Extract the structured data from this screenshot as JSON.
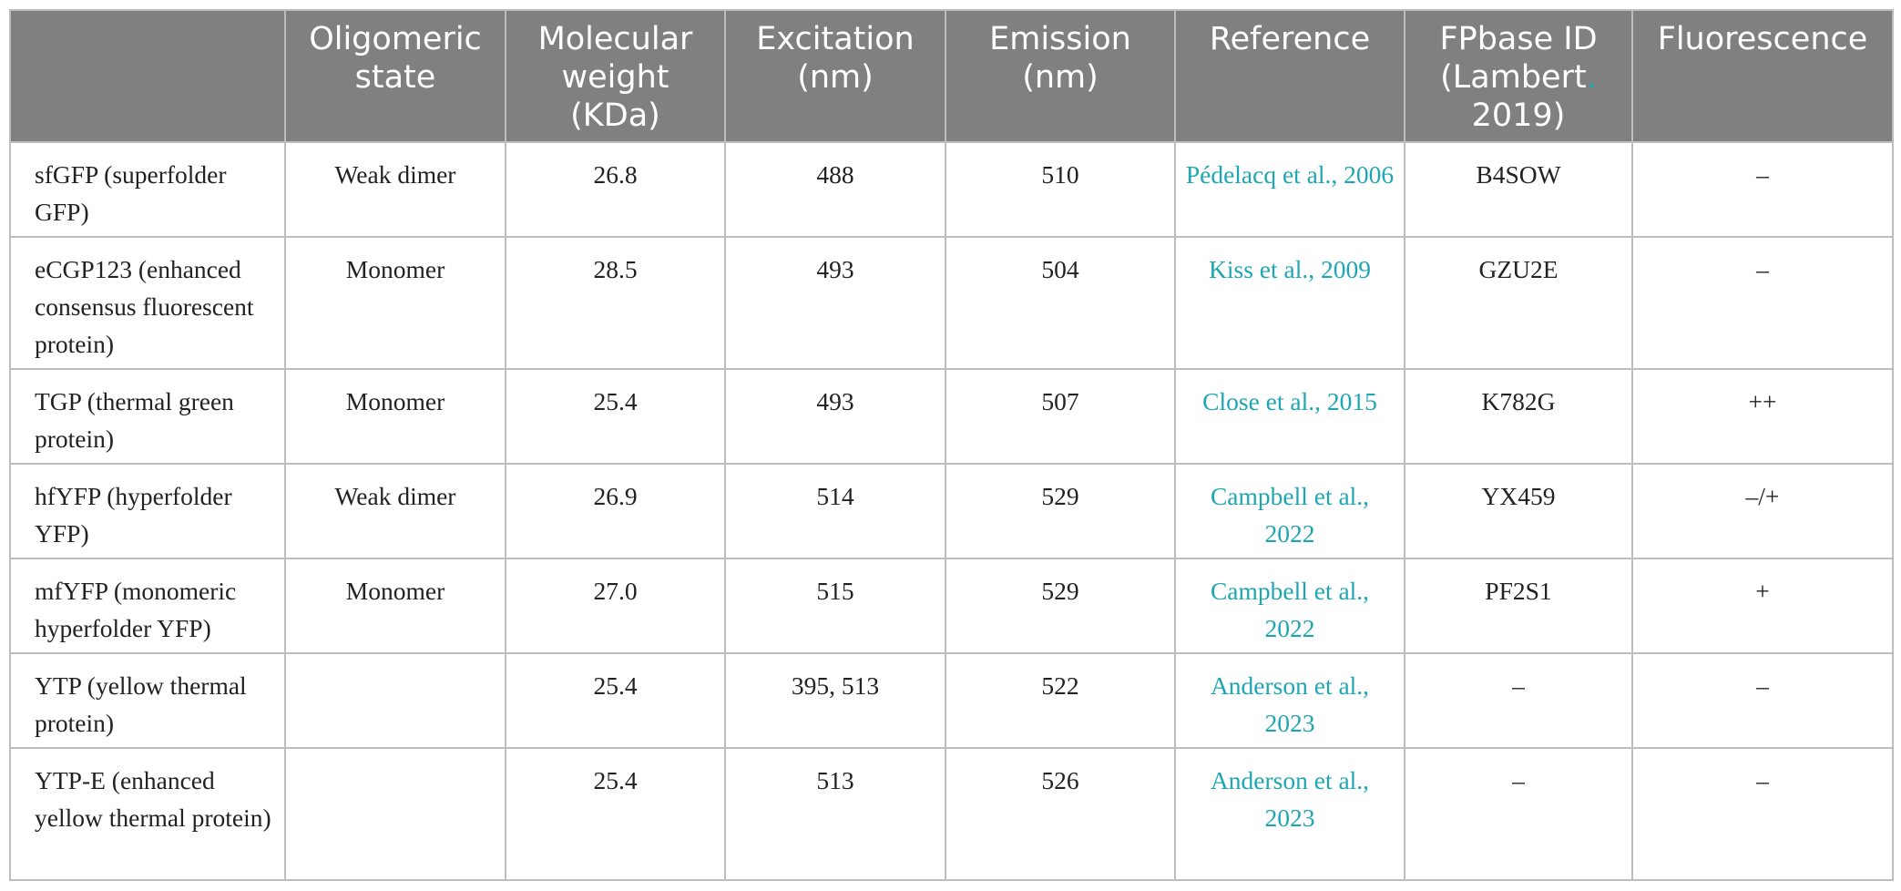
{
  "colors": {
    "header_bg": "#808080",
    "header_text": "#ffffff",
    "link": "#1fa6b3",
    "border": "#bdbdbd"
  },
  "table": {
    "headers": [
      "",
      "Oligomeric state",
      "Molecular weight (KDa)",
      "Excitation (nm)",
      "Emission (nm)",
      "Reference",
      "FPbase ID (Lambert",
      "Fluorescence"
    ],
    "header_fpbase_suffix_dot": ".",
    "header_fpbase_year": "2019)",
    "rows": [
      {
        "name": "sfGFP (superfolder GFP)",
        "oligomeric": "Weak dimer",
        "mw": "26.8",
        "excitation": "488",
        "emission": "510",
        "reference": "Pédelacq et al., 2006",
        "fpbase": "B4SOW",
        "fluorescence": "–"
      },
      {
        "name": "eCGP123 (enhanced consensus fluorescent protein)",
        "oligomeric": "Monomer",
        "mw": "28.5",
        "excitation": "493",
        "emission": "504",
        "reference": "Kiss et al., 2009",
        "fpbase": "GZU2E",
        "fluorescence": "–"
      },
      {
        "name": "TGP (thermal green protein)",
        "oligomeric": "Monomer",
        "mw": "25.4",
        "excitation": "493",
        "emission": "507",
        "reference": "Close et al., 2015",
        "fpbase": "K782G",
        "fluorescence": "++"
      },
      {
        "name": "hfYFP (hyperfolder YFP)",
        "oligomeric": "Weak dimer",
        "mw": "26.9",
        "excitation": "514",
        "emission": "529",
        "reference": "Campbell et al., 2022",
        "fpbase": "YX459",
        "fluorescence": "–/+"
      },
      {
        "name": "mfYFP (monomeric hyperfolder YFP)",
        "oligomeric": "Monomer",
        "mw": "27.0",
        "excitation": "515",
        "emission": "529",
        "reference": "Campbell et al., 2022",
        "fpbase": "PF2S1",
        "fluorescence": "+"
      },
      {
        "name": "YTP (yellow thermal protein)",
        "oligomeric": "",
        "mw": "25.4",
        "excitation": "395, 513",
        "emission": "522",
        "reference": "Anderson et al., 2023",
        "fpbase": "–",
        "fluorescence": "–"
      },
      {
        "name": "YTP-E (enhanced yellow thermal protein)",
        "oligomeric": "",
        "mw": "25.4",
        "excitation": "513",
        "emission": "526",
        "reference": "Anderson et al., 2023",
        "fpbase": "–",
        "fluorescence": "–"
      }
    ]
  }
}
